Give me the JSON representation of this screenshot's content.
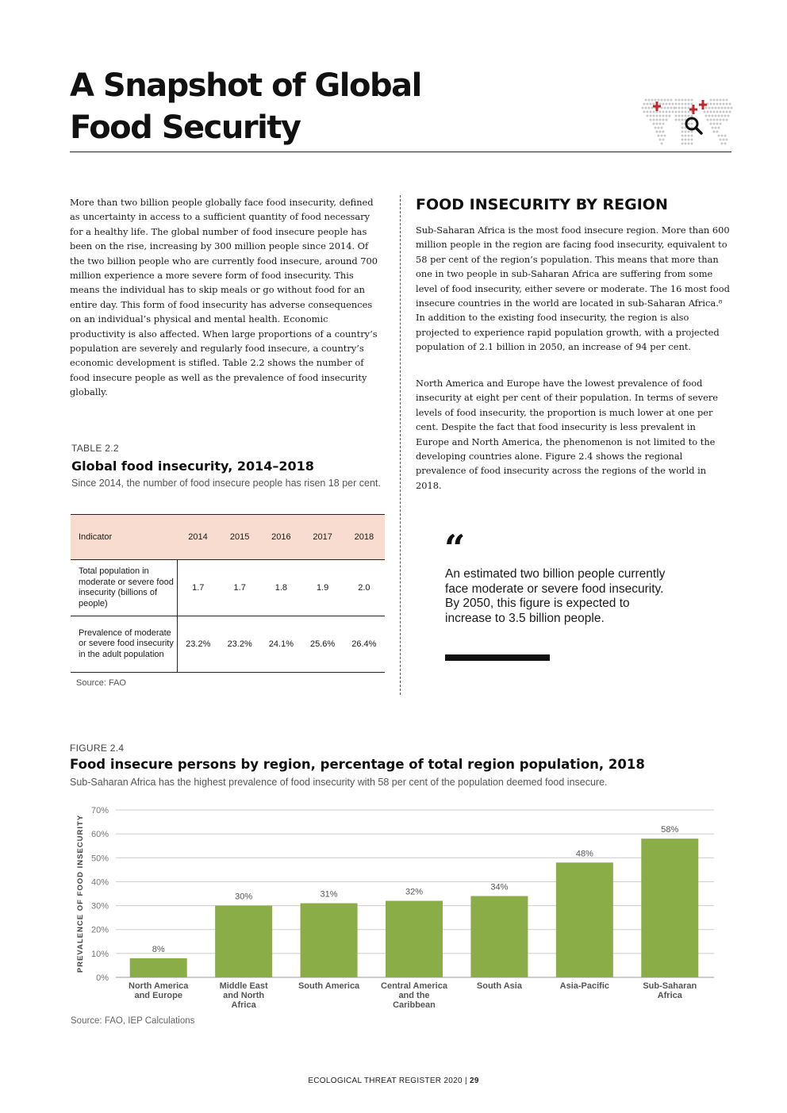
{
  "header": {
    "title_line1": "A Snapshot of Global",
    "title_line2": "Food Security"
  },
  "intro": {
    "paragraph": "More than two billion people globally face food insecurity, defined as uncertainty in access to a sufficient quantity of food necessary for a healthy life. The global number of food insecure people has been on the rise, increasing by 300 million people since 2014. Of the two billion people who are currently food insecure, around 700 million experience a more severe form of food insecurity. This means the individual has to skip meals or go without food for an entire day. This form of food insecurity has adverse consequences on an individual’s physical and mental health. Economic productivity is also affected. When large proportions of a country’s population are severely and regularly food insecure, a country’s economic development is stifled. Table 2.2 shows the number of food insecure people as well as the prevalence of food insecurity globally."
  },
  "region_section": {
    "heading": "FOOD INSECURITY BY REGION",
    "paragraph1": "Sub-Saharan Africa is the most food insecure region. More than 600 million people in the region are facing food insecurity, equivalent to 58 per cent of the region’s population. This means that more than one in two people in sub-Saharan Africa are suffering from some level of food insecurity, either severe or moderate. The 16 most food insecure countries in the world are located in sub-Saharan Africa.⁸ In addition to the existing food insecurity, the region is also projected to experience rapid population growth, with a projected population of 2.1 billion in 2050, an increase of 94 per cent.",
    "paragraph2": "North America and Europe have the lowest prevalence of food insecurity at eight per cent of their population. In terms of severe levels of food insecurity, the proportion is much lower at one per cent. Despite the fact that food insecurity is less prevalent in Europe and North America, the phenomenon is not limited to the developing countries alone. Figure 2.4 shows the regional prevalence of food insecurity across the regions of the world in 2018."
  },
  "table": {
    "label": "TABLE 2.2",
    "title": "Global food insecurity, 2014–2018",
    "subtitle": "Since 2014, the number of food insecure people has risen 18 per cent.",
    "header": [
      "Indicator",
      "2014",
      "2015",
      "2016",
      "2017",
      "2018"
    ],
    "rows": [
      [
        "Total population in moderate or severe food insecurity (billions of people)",
        "1.7",
        "1.7",
        "1.8",
        "1.9",
        "2.0"
      ],
      [
        "Prevalence of moderate or severe food insecurity in the adult population",
        "23.2%",
        "23.2%",
        "24.1%",
        "25.6%",
        "26.4%"
      ]
    ],
    "source": "Source: FAO"
  },
  "quote": {
    "mark": "“",
    "text": "An estimated two billion people currently face moderate or severe food insecurity. By 2050, this figure is expected to increase to 3.5 billion people."
  },
  "figure": {
    "label": "FIGURE 2.4",
    "title": "Food insecure persons by region, percentage of total region population, 2018",
    "subtitle": "Sub-Saharan Africa has the highest prevalence of food insecurity with 58 per cent of the population deemed food insecure.",
    "source": "Source: FAO, IEP Calculations"
  },
  "chart_data": {
    "type": "bar",
    "categories": [
      [
        "North America",
        "and Europe"
      ],
      [
        "Middle East",
        "and North",
        "Africa"
      ],
      [
        "South America"
      ],
      [
        "Central America",
        "and the",
        "Caribbean"
      ],
      [
        "South Asia"
      ],
      [
        "Asia-Pacific"
      ],
      [
        "Sub-Saharan",
        "Africa"
      ]
    ],
    "values": [
      8,
      30,
      31,
      32,
      34,
      48,
      58
    ],
    "data_labels": [
      "8%",
      "30%",
      "31%",
      "32%",
      "34%",
      "48%",
      "58%"
    ],
    "ylabel": "PREVALENCE OF FOOD INSECURITY",
    "ylim": [
      0,
      70
    ],
    "yticks": [
      "0%",
      "10%",
      "20%",
      "30%",
      "40%",
      "50%",
      "60%",
      "70%"
    ],
    "grid": true,
    "bar_color": "#8aad47",
    "grid_color": "#cccccc"
  },
  "footer": {
    "publication": "ECOLOGICAL THREAT REGISTER 2020",
    "separator": "|",
    "page": "29"
  },
  "colors": {
    "table_header_bg": "#f8dccf",
    "map_dots": "#c8c8c8",
    "map_accent": "#c0262d"
  }
}
